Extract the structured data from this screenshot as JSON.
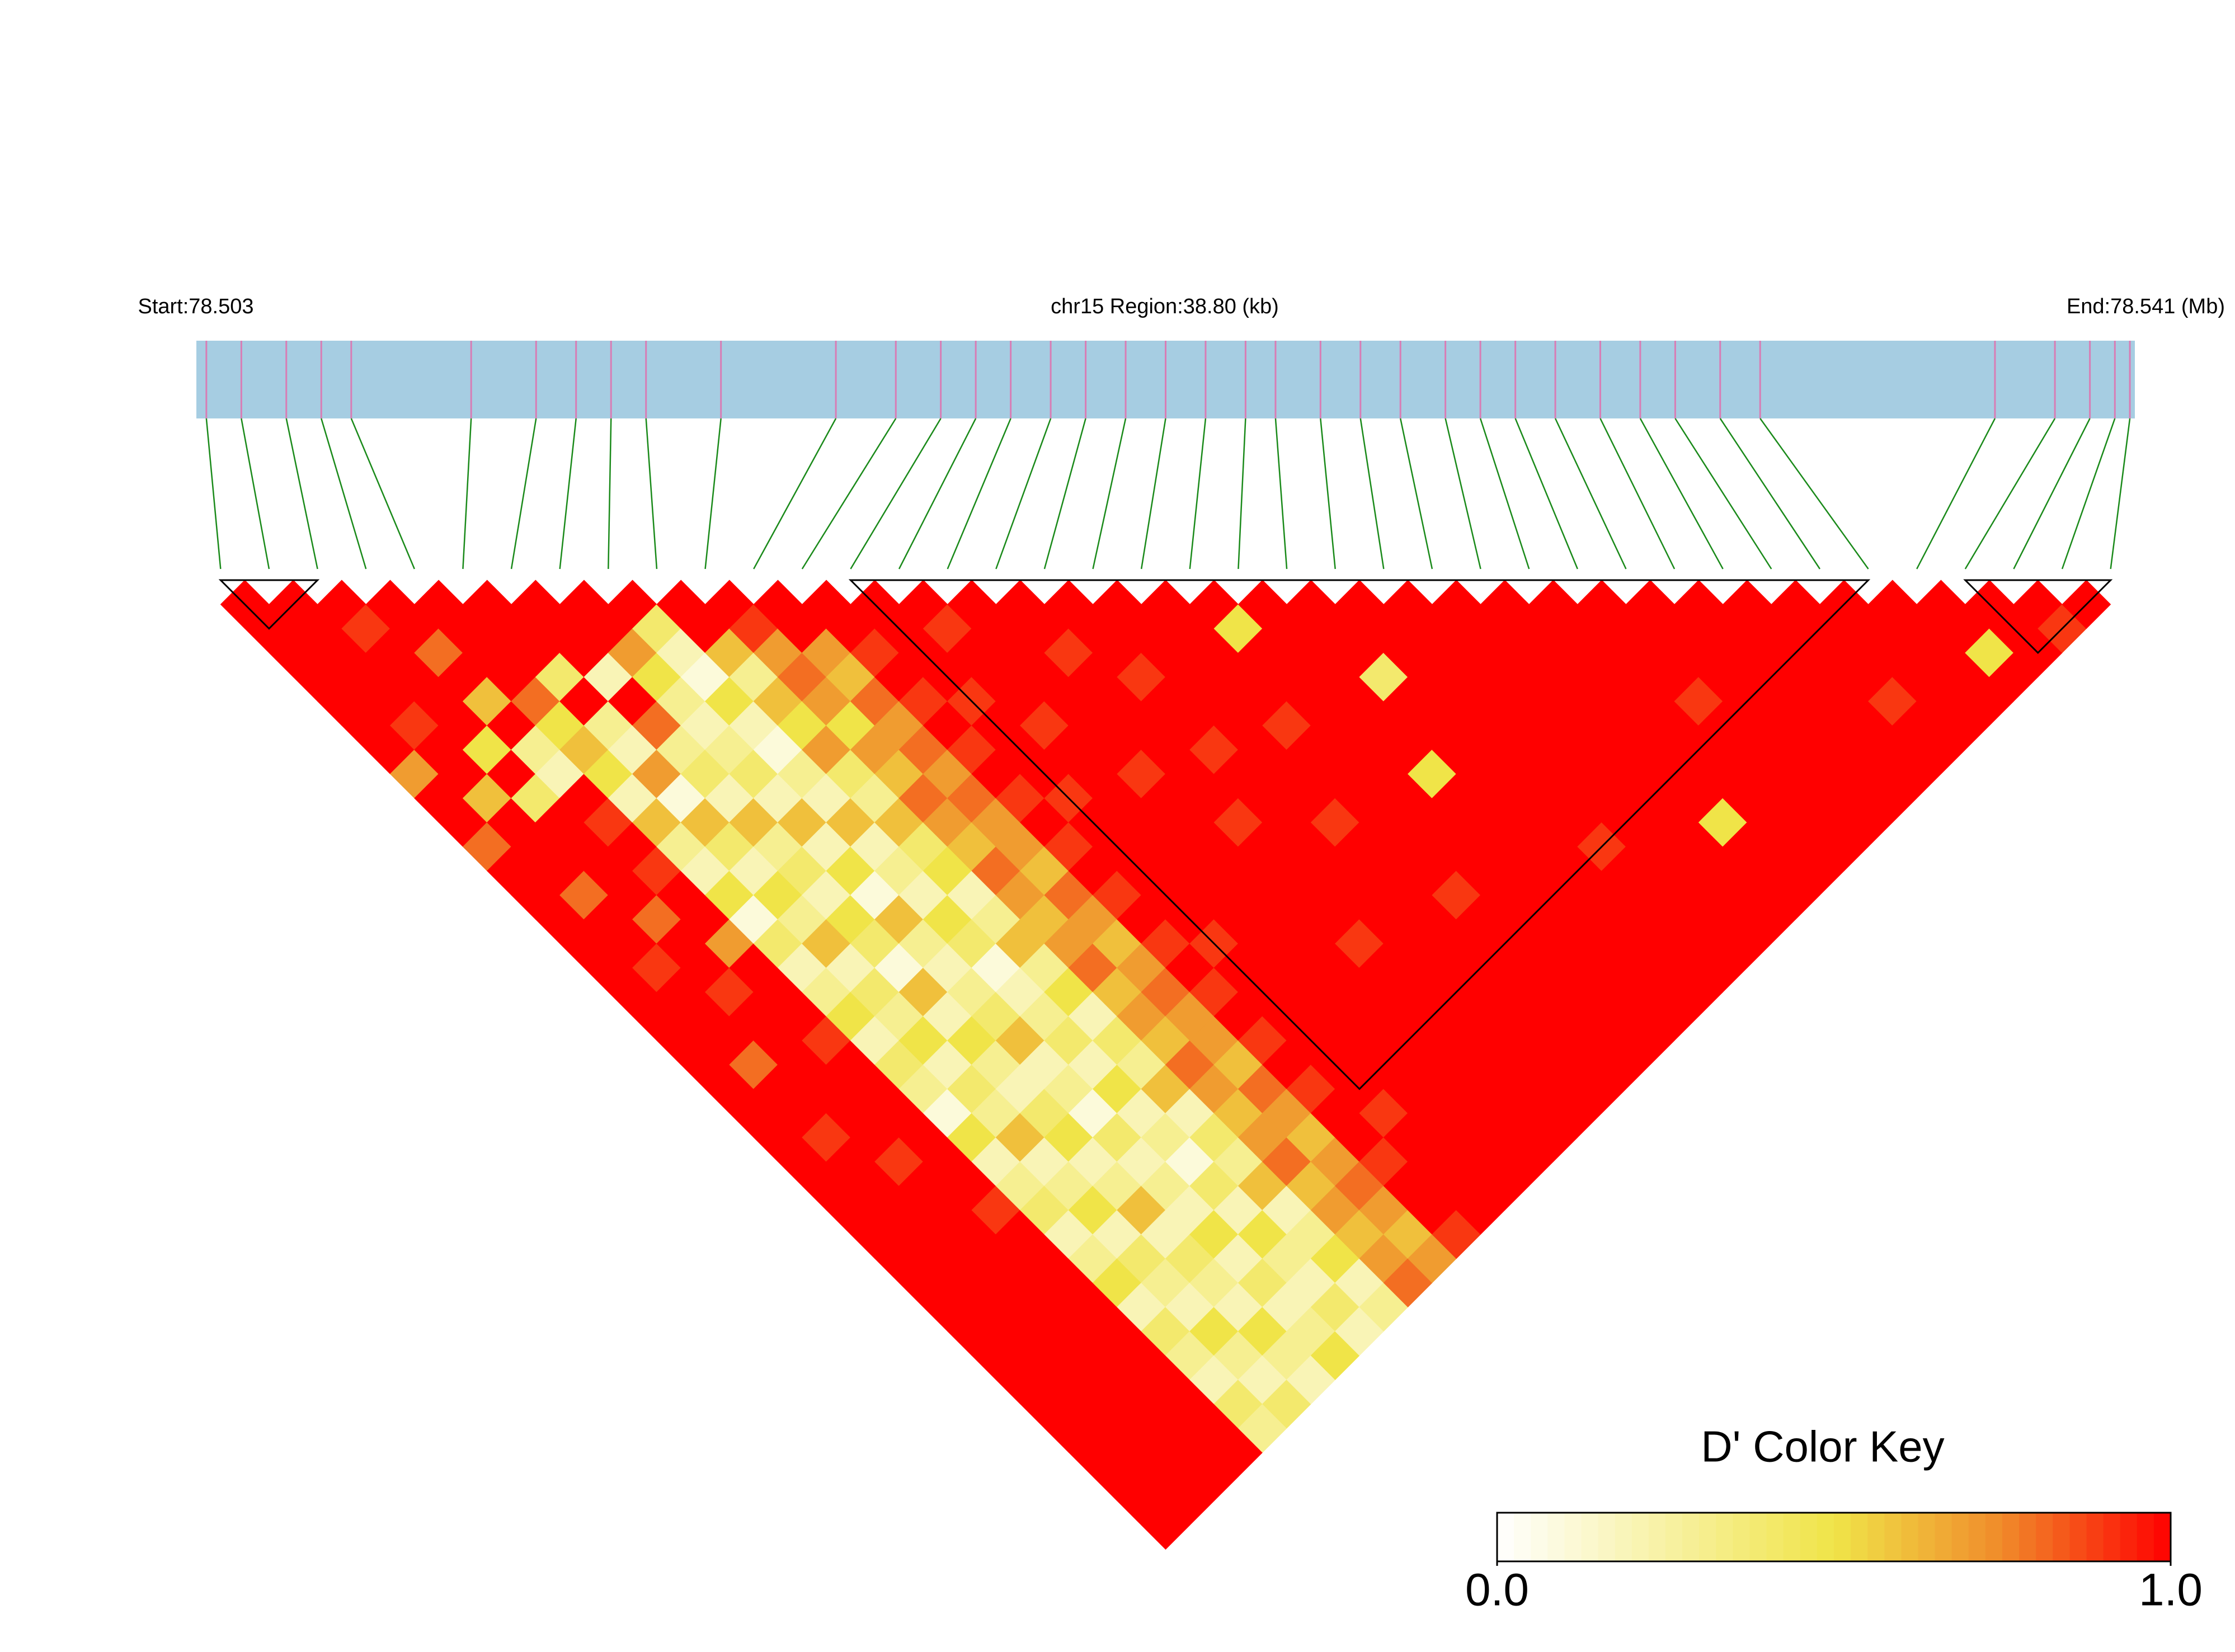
{
  "chart_data": {
    "type": "ld_heatmap",
    "start_label": "Start:78.503",
    "region_label": "chr15 Region:38.80 (kb)",
    "end_label": "End:78.541 (Mb)",
    "xlim": [
      0,
      38.8
    ],
    "snp_positions": [
      0.2,
      0.9,
      1.8,
      2.5,
      3.1,
      5.5,
      6.8,
      7.6,
      8.3,
      9.0,
      10.5,
      12.8,
      14.0,
      14.9,
      15.6,
      16.3,
      17.1,
      17.8,
      18.6,
      19.4,
      20.2,
      21.0,
      21.6,
      22.5,
      23.3,
      24.1,
      25.0,
      25.7,
      26.4,
      27.2,
      28.1,
      28.9,
      29.6,
      30.5,
      31.3,
      36.0,
      37.2,
      37.9,
      38.4,
      38.7
    ],
    "bar_color": "#a6cde2",
    "snp_color": "#d87db5",
    "link_color": "#1a8a1a",
    "dprime": [
      [
        1
      ],
      [
        1,
        1
      ],
      [
        1,
        1,
        1
      ],
      [
        1,
        1,
        0.9,
        1
      ],
      [
        1,
        1,
        1,
        1,
        1
      ],
      [
        1,
        1,
        1,
        0.8,
        1,
        1
      ],
      [
        1,
        0.9,
        1,
        1,
        1,
        1,
        1
      ],
      [
        0.7,
        1,
        1,
        0.6,
        1,
        1,
        1,
        1
      ],
      [
        1,
        1,
        0.5,
        1,
        0.8,
        0.4,
        1,
        1,
        1
      ],
      [
        1,
        0.6,
        1,
        0.3,
        0.5,
        1,
        0.2,
        0.7,
        0.4,
        1
      ],
      [
        0.8,
        1,
        0.4,
        0.2,
        0.6,
        0.3,
        1,
        0.5,
        0.2,
        1,
        1
      ],
      [
        1,
        1,
        1,
        1,
        0.5,
        0.2,
        0.8,
        0.3,
        0.1,
        0.6,
        0.9,
        1
      ],
      [
        1,
        1,
        1,
        0.9,
        0.2,
        0.7,
        0.3,
        0.2,
        0.5,
        0.3,
        0.7,
        1,
        1
      ],
      [
        1,
        0.8,
        1,
        1,
        0.6,
        0.1,
        0.4,
        0.3,
        0.2,
        0.6,
        0.8,
        0.7,
        1,
        1
      ],
      [
        1,
        1,
        1,
        0.9,
        0.3,
        0.6,
        0.2,
        0.4,
        0.1,
        0.5,
        0.7,
        0.6,
        0.9,
        1,
        1
      ],
      [
        1,
        1,
        0.8,
        1,
        0.2,
        0.4,
        0.6,
        0.2,
        0.3,
        0.7,
        0.5,
        0.8,
        1,
        1,
        0.9,
        1
      ],
      [
        1,
        0.9,
        1,
        1,
        0.5,
        0.2,
        0.3,
        0.6,
        0.2,
        0.4,
        0.7,
        0.7,
        0.9,
        1,
        1,
        1,
        1
      ],
      [
        1,
        1,
        1,
        0.7,
        0.1,
        0.5,
        0.4,
        0.2,
        0.6,
        0.3,
        0.6,
        0.8,
        1,
        0.9,
        1,
        1,
        1,
        1
      ],
      [
        1,
        1,
        0.9,
        1,
        0.4,
        0.3,
        0.2,
        0.5,
        0.2,
        0.6,
        0.8,
        0.7,
        0.9,
        1,
        1,
        1,
        0.9,
        1,
        1
      ],
      [
        1,
        1,
        1,
        1,
        0.2,
        0.6,
        0.5,
        0.1,
        0.3,
        0.4,
        0.7,
        0.8,
        1,
        1,
        0.9,
        1,
        1,
        1,
        1,
        1
      ],
      [
        1,
        0.8,
        1,
        1,
        0.3,
        0.2,
        0.4,
        0.6,
        0.2,
        0.5,
        0.6,
        0.7,
        0.9,
        1,
        1,
        1,
        1,
        0.9,
        1,
        1,
        1
      ],
      [
        1,
        1,
        1,
        0.9,
        0.5,
        0.4,
        0.1,
        0.3,
        0.5,
        0.2,
        0.8,
        0.7,
        1,
        0.9,
        1,
        1,
        1,
        1,
        1,
        1,
        0.5,
        1
      ],
      [
        1,
        1,
        1,
        1,
        0.2,
        0.3,
        0.6,
        0.2,
        0.4,
        0.3,
        0.7,
        0.6,
        0.9,
        1,
        1,
        0.9,
        1,
        1,
        1,
        1,
        1,
        1,
        1
      ],
      [
        1,
        0.9,
        1,
        1,
        0.4,
        0.5,
        0.2,
        0.3,
        0.1,
        0.6,
        0.6,
        0.8,
        1,
        1,
        1,
        1,
        1,
        0.9,
        1,
        1,
        1,
        1,
        1,
        1
      ],
      [
        1,
        1,
        1,
        1,
        0.3,
        0.2,
        0.5,
        0.4,
        0.2,
        0.3,
        0.7,
        0.7,
        0.9,
        1,
        1,
        1,
        1,
        1,
        1,
        0.9,
        1,
        1,
        1,
        1,
        1
      ],
      [
        1,
        1,
        0.9,
        1,
        0.1,
        0.4,
        0.3,
        0.6,
        0.3,
        0.5,
        0.8,
        0.6,
        1,
        1,
        1,
        1,
        0.9,
        1,
        1,
        1,
        1,
        1,
        0.4,
        1,
        1,
        1
      ],
      [
        1,
        1,
        1,
        1,
        0.5,
        0.3,
        0.2,
        0.2,
        0.4,
        0.2,
        0.6,
        0.7,
        0.9,
        1,
        1,
        1,
        1,
        1,
        1,
        1,
        1,
        1,
        1,
        1,
        1,
        1,
        1
      ],
      [
        1,
        1,
        1,
        1,
        0.2,
        0.6,
        0.4,
        0.3,
        0.2,
        0.4,
        0.7,
        0.8,
        1,
        0.9,
        1,
        1,
        1,
        1,
        0.9,
        1,
        1,
        1,
        1,
        1,
        1,
        1,
        1,
        1
      ],
      [
        1,
        1,
        1,
        0.9,
        0.3,
        0.2,
        0.5,
        0.1,
        0.5,
        0.3,
        0.6,
        0.7,
        0.9,
        1,
        1,
        1,
        1,
        1,
        1,
        1,
        1,
        0.5,
        1,
        1,
        1,
        1,
        1,
        1,
        1
      ],
      [
        1,
        1,
        1,
        1,
        0.4,
        0.3,
        0.2,
        0.4,
        0.2,
        0.6,
        0.8,
        0.7,
        1,
        1,
        1,
        1,
        1,
        1,
        1,
        1,
        1,
        1,
        1,
        1,
        1,
        1,
        1,
        1,
        1,
        1
      ],
      [
        1,
        1,
        1,
        1,
        0.2,
        0.5,
        0.3,
        0.2,
        0.3,
        0.2,
        0.7,
        0.6,
        0.9,
        1,
        1,
        1,
        0.9,
        1,
        1,
        1,
        1,
        1,
        1,
        1,
        1,
        1,
        1,
        1,
        1,
        1,
        1
      ],
      [
        1,
        1,
        1,
        1,
        0.3,
        0.2,
        0.6,
        0.3,
        0.1,
        0.4,
        0.6,
        0.8,
        1,
        1,
        1,
        1,
        1,
        1,
        1,
        0.9,
        1,
        1,
        1,
        1,
        1,
        1,
        1,
        1,
        1,
        1,
        1,
        1
      ],
      [
        1,
        1,
        1,
        1,
        0.5,
        0.4,
        0.2,
        0.2,
        0.4,
        0.3,
        0.7,
        0.7,
        0.9,
        1,
        1,
        1,
        1,
        1,
        1,
        1,
        1,
        1,
        1,
        1,
        1,
        1,
        1,
        1,
        0.9,
        1,
        1,
        1,
        1
      ],
      [
        1,
        1,
        1,
        1,
        0.2,
        0.3,
        0.4,
        0.5,
        0.2,
        0.6,
        0.8,
        0.6,
        1,
        1,
        1,
        1,
        1,
        1,
        1,
        1,
        1,
        1,
        1,
        0.9,
        1,
        1,
        1,
        1,
        1,
        1,
        1,
        1,
        1,
        1
      ],
      [
        1,
        1,
        1,
        1,
        0.4,
        0.2,
        0.3,
        0.2,
        0.5,
        0.2,
        0.6,
        0.7,
        1,
        0.9,
        1,
        1,
        1,
        1,
        1,
        1,
        1,
        1,
        1,
        1,
        1,
        1,
        1,
        1,
        1,
        1,
        1,
        1,
        1,
        1,
        1
      ],
      [
        1,
        1,
        1,
        1,
        0.3,
        0.5,
        0.2,
        0.4,
        0.3,
        0.3,
        0.7,
        0.8,
        0.9,
        1,
        1,
        1,
        1,
        1,
        1,
        1,
        1,
        1,
        1,
        1,
        1,
        1,
        0.5,
        1,
        1,
        1,
        1,
        1,
        1,
        1,
        1,
        1
      ],
      [
        1,
        1,
        1,
        1,
        0.2,
        0.3,
        0.5,
        0.2,
        0.2,
        0.5,
        0.6,
        0.7,
        1,
        1,
        1,
        1,
        1,
        1,
        1,
        1,
        1,
        1,
        1,
        1,
        1,
        1,
        1,
        1,
        1,
        1,
        1,
        1,
        0.9,
        1,
        1,
        1,
        1
      ],
      [
        1,
        1,
        1,
        1,
        0.4,
        0.2,
        0.3,
        0.3,
        0.4,
        0.2,
        0.7,
        0.6,
        1,
        1,
        1,
        1,
        1,
        1,
        1,
        1,
        1,
        1,
        1,
        1,
        1,
        1,
        1,
        1,
        1,
        1,
        1,
        1,
        1,
        1,
        1,
        0.5,
        1,
        1
      ],
      [
        1,
        1,
        1,
        1,
        0.3,
        0.4,
        0.2,
        0.5,
        0.2,
        0.3,
        0.8,
        0.7,
        0.9,
        1,
        1,
        1,
        1,
        1,
        1,
        1,
        1,
        1,
        1,
        1,
        1,
        1,
        1,
        1,
        1,
        1,
        1,
        1,
        1,
        1,
        1,
        1,
        1,
        0.9,
        1
      ]
    ],
    "blocks": [
      [
        0,
        2
      ],
      [
        13,
        34
      ],
      [
        36,
        39
      ]
    ],
    "color_key_title": "D' Color Key",
    "color_key_ticks": [
      {
        "value": 0,
        "label": "0.0"
      },
      {
        "value": 1,
        "label": "1.0"
      }
    ]
  }
}
